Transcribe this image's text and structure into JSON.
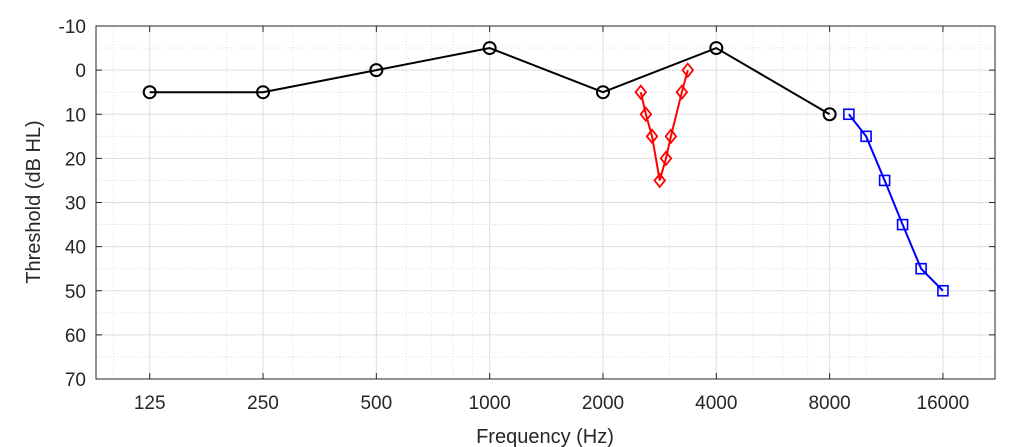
{
  "chart_data": {
    "type": "line",
    "title": "",
    "xlabel": "Frequency (Hz)",
    "ylabel": "Threshold (dB HL)",
    "x_scale": "log2",
    "xlim": [
      90,
      22000
    ],
    "ylim": [
      -10,
      70
    ],
    "y_reversed": true,
    "grid": true,
    "minor_grid": true,
    "x_ticks": [
      125,
      250,
      500,
      1000,
      2000,
      4000,
      8000,
      16000
    ],
    "x_tick_labels": [
      "125",
      "250",
      "500",
      "1000",
      "2000",
      "4000",
      "8000",
      "16000"
    ],
    "y_ticks": [
      -10,
      0,
      10,
      20,
      30,
      40,
      50,
      60,
      70
    ],
    "y_tick_labels": [
      "-10",
      "0",
      "10",
      "20",
      "30",
      "40",
      "50",
      "60",
      "70"
    ],
    "series": [
      {
        "color": "#000000",
        "marker": "circle",
        "points": [
          {
            "x": 125,
            "y": 5
          },
          {
            "x": 250,
            "y": 5
          },
          {
            "x": 500,
            "y": 0
          },
          {
            "x": 1000,
            "y": -5
          },
          {
            "x": 2000,
            "y": 5
          },
          {
            "x": 4000,
            "y": -5
          },
          {
            "x": 8000,
            "y": 10
          }
        ]
      },
      {
        "color": "#ff0000",
        "marker": "diamond",
        "points": [
          {
            "x": 2520,
            "y": 5
          },
          {
            "x": 2600,
            "y": 10
          },
          {
            "x": 2700,
            "y": 15
          },
          {
            "x": 2830,
            "y": 25
          },
          {
            "x": 2940,
            "y": 20
          },
          {
            "x": 3030,
            "y": 15
          },
          {
            "x": 3240,
            "y": 5
          },
          {
            "x": 3360,
            "y": 0
          }
        ]
      },
      {
        "color": "#0000ff",
        "marker": "square",
        "points": [
          {
            "x": 9000,
            "y": 10
          },
          {
            "x": 10000,
            "y": 15
          },
          {
            "x": 11200,
            "y": 25
          },
          {
            "x": 12500,
            "y": 35
          },
          {
            "x": 14000,
            "y": 45
          },
          {
            "x": 16000,
            "y": 50
          }
        ]
      }
    ]
  }
}
